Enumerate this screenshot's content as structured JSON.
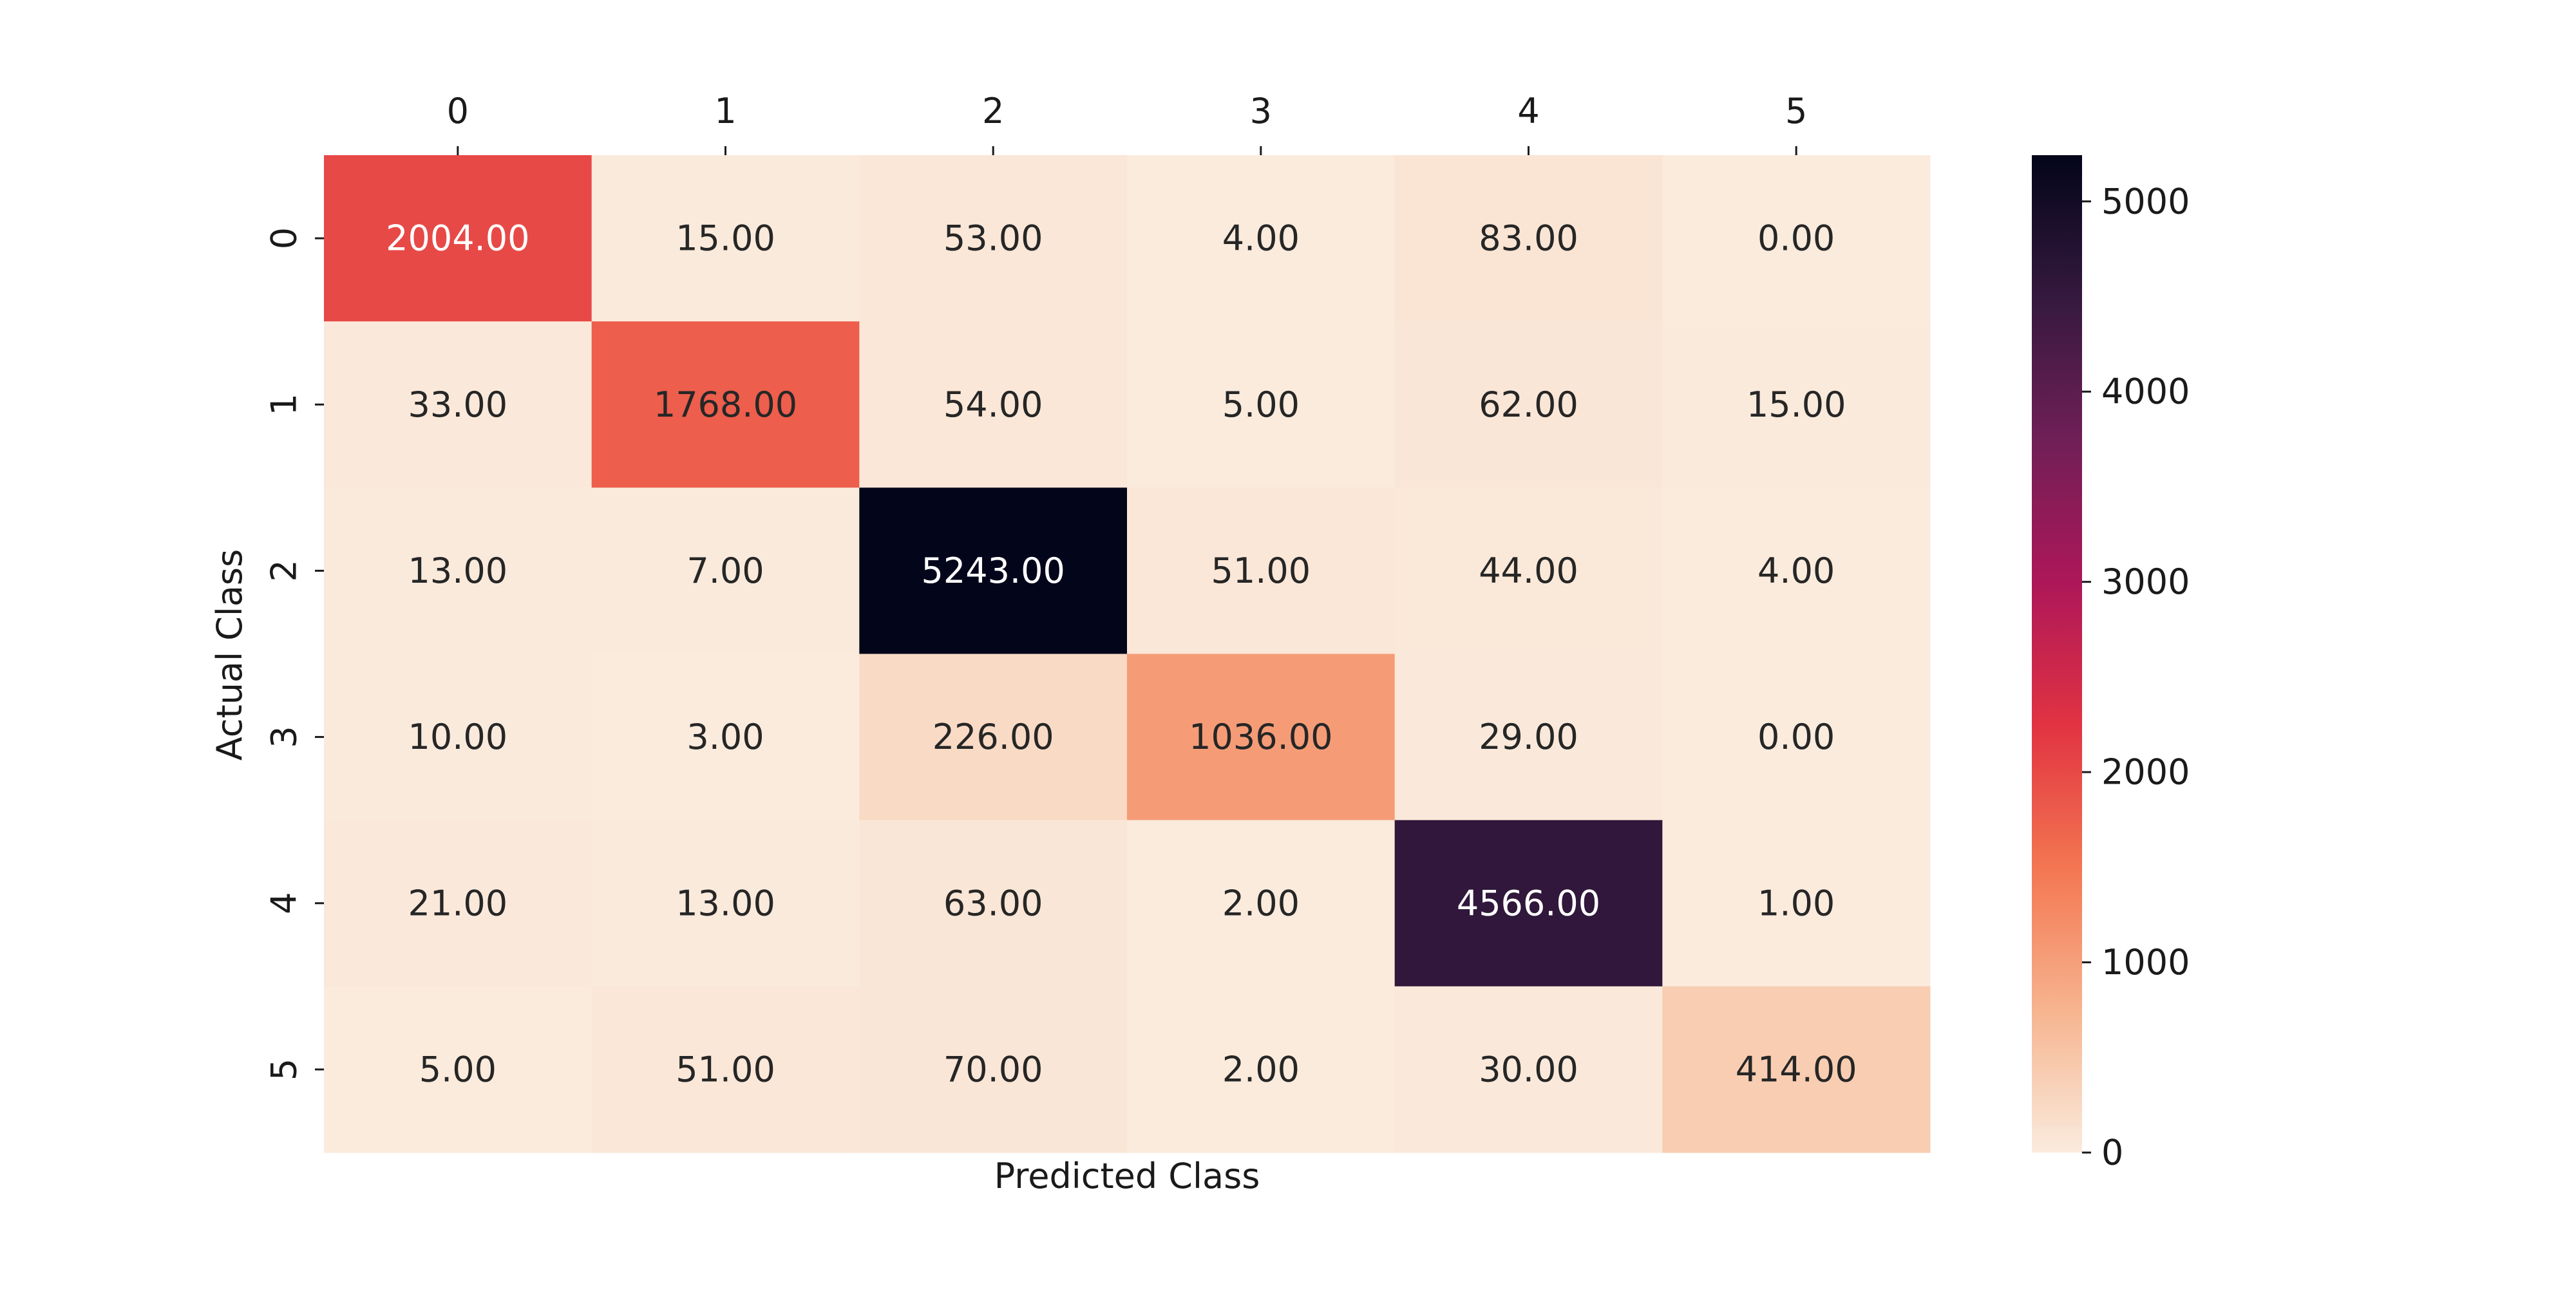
{
  "chart_data": {
    "type": "heatmap",
    "title": "",
    "xlabel": "Predicted Class",
    "ylabel": "Actual Class",
    "x_ticks_position": "top",
    "x_categories": [
      "0",
      "1",
      "2",
      "3",
      "4",
      "5"
    ],
    "y_categories": [
      "0",
      "1",
      "2",
      "3",
      "4",
      "5"
    ],
    "values": [
      [
        2004,
        15,
        53,
        4,
        83,
        0
      ],
      [
        33,
        1768,
        54,
        5,
        62,
        15
      ],
      [
        13,
        7,
        5243,
        51,
        44,
        4
      ],
      [
        10,
        3,
        226,
        1036,
        29,
        0
      ],
      [
        21,
        13,
        63,
        2,
        4566,
        1
      ],
      [
        5,
        51,
        70,
        2,
        30,
        414
      ]
    ],
    "value_format": "0.00",
    "colormap": "rocket_r",
    "colormap_stops": [
      "#faebdd",
      "#f6b48f",
      "#f37651",
      "#e13342",
      "#ad1759",
      "#701f57",
      "#35193e",
      "#03051a"
    ],
    "vmin": 0,
    "vmax": 5243,
    "colorbar_ticks": [
      0,
      1000,
      2000,
      3000,
      4000,
      5000
    ],
    "colorbar_position": "right",
    "grid": false
  }
}
